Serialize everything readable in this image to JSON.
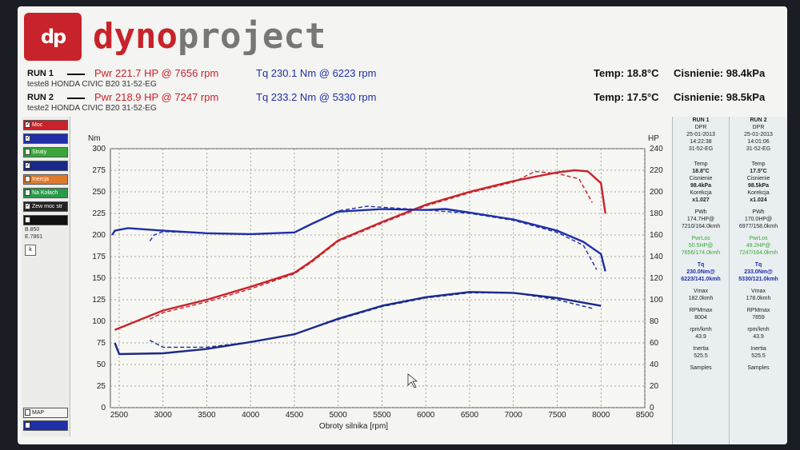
{
  "brand": {
    "logo_text": "dp",
    "name_part1": "dyno",
    "name_part2": "project"
  },
  "runs": [
    {
      "label": "RUN 1",
      "pwr": "Pwr  221.7 HP @ 7656 rpm",
      "tq": "Tq 230.1 Nm @ 6223 rpm",
      "subtitle": "teste8 HONDA CIVIC B20 31-52-EG",
      "temp": "Temp: 18.8°C",
      "pressure": "Cisnienie: 98.4kPa"
    },
    {
      "label": "RUN 2",
      "pwr": "Pwr  218.9 HP @ 7247 rpm",
      "tq": "Tq 233.2 Nm @ 5330 rpm",
      "subtitle": "teste2 HONDA CIVIC B20 31-52-EG",
      "temp": "Temp: 17.5°C",
      "pressure": "Cisnienie: 98.5kPa"
    }
  ],
  "left_panel": {
    "items": [
      {
        "label": "Moc",
        "color": "#c8232a",
        "checked": "✓"
      },
      {
        "label": "",
        "color": "#1e2fa8",
        "checked": "✓"
      },
      {
        "label": "Straty",
        "color": "#3aa63a",
        "checked": ""
      },
      {
        "label": "",
        "color": "#1a2a8a",
        "checked": "✓"
      },
      {
        "label": "Inercja",
        "color": "#e07a2a",
        "checked": ""
      },
      {
        "label": "Na Kołach",
        "color": "#2a9a4a",
        "checked": ""
      },
      {
        "label": "Zew moc str",
        "color": "#222222",
        "checked": "✓"
      },
      {
        "label": "",
        "color": "#111111",
        "checked": ""
      }
    ],
    "b_value": "B.850",
    "e_value": "E.7861",
    "k_button": "k",
    "map_label": "MAP"
  },
  "chart": {
    "left_unit": "Nm",
    "right_unit": "HP",
    "xlabel": "Obroty silnika [rpm]"
  },
  "chart_data": {
    "type": "line",
    "xlabel": "Obroty silnika [rpm]",
    "ylabel_left": "Nm",
    "ylabel_right": "HP",
    "xlim": [
      2400,
      8500
    ],
    "ylim_left": [
      0,
      300
    ],
    "ylim_right": [
      0,
      240
    ],
    "x_ticks": [
      "2500",
      "3000",
      "3500",
      "4000",
      "4500",
      "5000",
      "5500",
      "6000",
      "6500",
      "7000",
      "7500",
      "8000",
      "8500"
    ],
    "y_left_ticks": [
      "0",
      "25",
      "50",
      "75",
      "100",
      "125",
      "150",
      "175",
      "200",
      "225",
      "250",
      "275",
      "300"
    ],
    "y_right_ticks": [
      "0",
      "20",
      "40",
      "60",
      "80",
      "100",
      "120",
      "140",
      "160",
      "180",
      "200",
      "220",
      "240"
    ],
    "grid": true,
    "series": [
      {
        "name": "",
        "axis": "right",
        "color": "#c8232a",
        "style": "solid",
        "x": [
          2450,
          3000,
          3500,
          4000,
          4500,
          4700,
          5000,
          5500,
          6000,
          6500,
          7000,
          7500,
          7700,
          7850,
          8000,
          8050
        ],
        "y": [
          72,
          90,
          100,
          112,
          125,
          136,
          155,
          172,
          188,
          200,
          210,
          218,
          220,
          219,
          208,
          180
        ]
      },
      {
        "name": "",
        "axis": "right",
        "color": "#c8232a",
        "style": "dashed",
        "x": [
          2850,
          3000,
          3500,
          4000,
          4500,
          4700,
          5000,
          5500,
          6000,
          6500,
          7000,
          7247,
          7500,
          7750,
          7900
        ],
        "y": [
          82,
          88,
          98,
          110,
          124,
          135,
          154,
          171,
          187,
          199,
          209,
          218.9,
          217,
          212,
          190
        ]
      },
      {
        "name": "",
        "axis": "left",
        "color": "#1e2fa8",
        "style": "solid",
        "x": [
          2420,
          2450,
          2600,
          3000,
          3500,
          4000,
          4500,
          4700,
          5000,
          5500,
          6000,
          6223,
          6500,
          7000,
          7500,
          7800,
          8000,
          8050
        ],
        "y": [
          200,
          205,
          208,
          205,
          202,
          201,
          203,
          213,
          227,
          230,
          229,
          230.1,
          226,
          218,
          205,
          192,
          178,
          158
        ]
      },
      {
        "name": "",
        "axis": "left",
        "color": "#1e2fa8",
        "style": "dashed",
        "x": [
          2850,
          2900,
          3000,
          3500,
          4000,
          4500,
          4700,
          5000,
          5330,
          6000,
          6500,
          7000,
          7500,
          7800,
          7950
        ],
        "y": [
          193,
          200,
          204,
          202,
          201,
          203,
          213,
          228,
          233.2,
          229,
          225,
          217,
          203,
          188,
          160
        ]
      },
      {
        "name": "",
        "axis": "left",
        "color": "#1a2a8a",
        "style": "solid",
        "x": [
          2450,
          2500,
          3000,
          3500,
          4000,
          4500,
          5000,
          5500,
          6000,
          6500,
          7000,
          7500,
          8000
        ],
        "y": [
          75,
          62,
          63,
          68,
          76,
          85,
          103,
          118,
          128,
          134,
          133,
          127,
          118
        ]
      },
      {
        "name": "",
        "axis": "left",
        "color": "#1a2a8a",
        "style": "dashed",
        "x": [
          2850,
          3000,
          3500,
          4000,
          4500,
          5000,
          5500,
          6000,
          6500,
          7000,
          7500,
          7900
        ],
        "y": [
          78,
          70,
          70,
          76,
          85,
          102,
          117,
          127,
          133,
          133,
          125,
          115
        ]
      }
    ]
  },
  "right_panel": {
    "col1": [
      "RUN 1",
      "DPR",
      "25-01-2013",
      "14:22:38",
      "31-52-EG",
      "",
      "Temp",
      "18.8°C",
      "Cisnienie",
      "98.4kPa",
      "Korekcja",
      "x1.027",
      "PWh",
      "174.7HP@",
      "7210/164.0kmh",
      "PwrLos",
      "50.5HP@",
      "7656/174.0kmh",
      "Tq",
      "230.0Nm@",
      "6223/141.0kmh",
      "Vmax",
      "182.0kmh",
      "RPMmax",
      "8004",
      "rpm/kmh",
      "43.9",
      "Inertia",
      "525.5",
      "Samples"
    ],
    "col2": [
      "RUN 2",
      "DPR",
      "25-01-2013",
      "14:01:06",
      "31-52-EG",
      "",
      "Temp",
      "17.5°C",
      "Cisnienie",
      "98.5kPa",
      "Korekcja",
      "x1.024",
      "PWh",
      "170.0HP@",
      "6977/158.0kmh",
      "PwrLos",
      "49.2HP@",
      "7247/164.0kmh",
      "Tq",
      "233.0Nm@",
      "5330/121.0kmh",
      "Vmax",
      "178.0kmh",
      "RPMmax",
      "7859",
      "rpm/kmh",
      "43.9",
      "Inertia",
      "525.5",
      "Samples"
    ]
  }
}
